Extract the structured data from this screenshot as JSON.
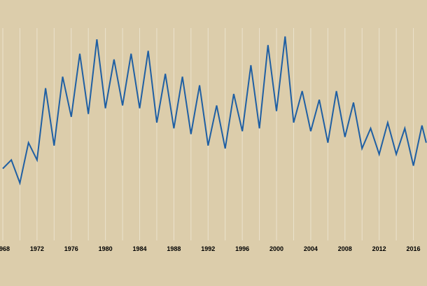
{
  "colors": {
    "background": "#dccdab",
    "gridline": "#ebe2cd",
    "series": "#1f5fa3"
  },
  "chart_data": {
    "type": "line",
    "title": "",
    "xlabel": "",
    "ylabel": "",
    "grid": "vertical",
    "x_ticks": [
      "1968",
      "1972",
      "1976",
      "1980",
      "1984",
      "1988",
      "1992",
      "1996",
      "2000",
      "2004",
      "2008",
      "2012",
      "2016"
    ],
    "xlim": [
      1968,
      2017.5
    ],
    "ylim": [
      0,
      100
    ],
    "x": [
      1968,
      1969,
      1970,
      1971,
      1972,
      1973,
      1974,
      1975,
      1976,
      1977,
      1978,
      1979,
      1980,
      1981,
      1982,
      1983,
      1984,
      1985,
      1986,
      1987,
      1988,
      1989,
      1990,
      1991,
      1992,
      1993,
      1994,
      1995,
      1996,
      1997,
      1998,
      1999,
      2000,
      2001,
      2002,
      2003,
      2004,
      2005,
      2006,
      2007,
      2008,
      2009,
      2010,
      2011,
      2012,
      2013,
      2014,
      2015,
      2016,
      2017,
      2017.5
    ],
    "series": [
      {
        "values": [
          44,
          47,
          39,
          53,
          47,
          72,
          52,
          76,
          62,
          84,
          63,
          89,
          65,
          82,
          66,
          84,
          65,
          85,
          60,
          77,
          58,
          76,
          56,
          73,
          52,
          66,
          51,
          70,
          57,
          80,
          58,
          87,
          64,
          90,
          60,
          71,
          57,
          68,
          53,
          71,
          55,
          67,
          51,
          58,
          49,
          60,
          49,
          58,
          45,
          59,
          53
        ]
      }
    ]
  }
}
